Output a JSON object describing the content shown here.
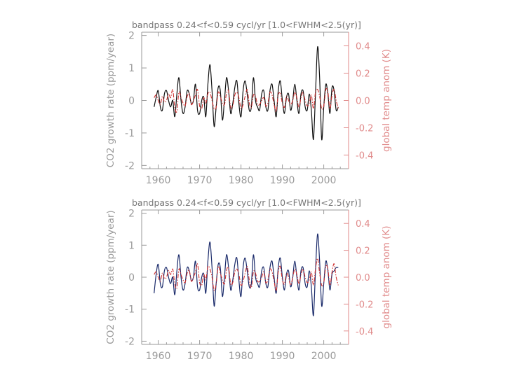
{
  "colors": {
    "co2": "#111111",
    "temp": "#d03030",
    "axis": "#9a9a9a",
    "right_axis": "#e08a8a",
    "co2_panel2": "#1a2a6a"
  },
  "chart_data": [
    {
      "type": "line",
      "title": "bandpass 0.24<f<0.59 cycl/yr  [1.0<FWHM<2.5(yr)]",
      "ylabel": "CO2 growth rate (ppm/year)",
      "y2label": "global temp anom (K)",
      "xlim": [
        1956,
        2006
      ],
      "ylim": [
        -2.1,
        2.1
      ],
      "y2lim": [
        -0.5,
        0.5
      ],
      "xticks": [
        1960,
        1970,
        1980,
        1990,
        2000
      ],
      "xtick_labels": [
        "1960",
        "1970",
        "1980",
        "1990",
        "2000"
      ],
      "yticks": [
        -2,
        -1,
        0,
        1,
        2
      ],
      "ytick_labels": [
        "-2",
        "-1",
        "0",
        "1",
        "2"
      ],
      "y2ticks": [
        -0.4,
        -0.2,
        0.0,
        0.2,
        0.4
      ],
      "y2tick_labels": [
        "-0.4",
        "-0.2",
        "0.0",
        "0.2",
        "0.4"
      ],
      "series": [
        {
          "axis": "left",
          "style": "solid",
          "color": "#111111",
          "x": [
            1959.0,
            1959.5,
            1960.0,
            1960.5,
            1961.0,
            1961.5,
            1962.0,
            1962.5,
            1963.0,
            1963.5,
            1964.0,
            1964.5,
            1965.0,
            1965.5,
            1966.0,
            1966.5,
            1967.0,
            1967.5,
            1968.0,
            1968.5,
            1969.0,
            1969.5,
            1970.0,
            1970.5,
            1971.0,
            1971.5,
            1972.0,
            1972.5,
            1973.0,
            1973.5,
            1974.0,
            1974.5,
            1975.0,
            1975.5,
            1976.0,
            1976.5,
            1977.0,
            1977.5,
            1978.0,
            1978.5,
            1979.0,
            1979.5,
            1980.0,
            1980.5,
            1981.0,
            1981.5,
            1982.0,
            1982.5,
            1983.0,
            1983.5,
            1984.0,
            1984.5,
            1985.0,
            1985.5,
            1986.0,
            1986.5,
            1987.0,
            1987.5,
            1988.0,
            1988.5,
            1989.0,
            1989.5,
            1990.0,
            1990.5,
            1991.0,
            1991.5,
            1992.0,
            1992.5,
            1993.0,
            1993.5,
            1994.0,
            1994.5,
            1995.0,
            1995.5,
            1996.0,
            1996.5,
            1997.0,
            1997.5,
            1998.0,
            1998.5,
            1999.0,
            1999.5,
            2000.0,
            2000.5,
            2001.0,
            2001.5,
            2002.0,
            2002.5,
            2003.0,
            2003.5
          ],
          "y": [
            -0.2,
            0.1,
            0.3,
            -0.2,
            -0.3,
            0.2,
            0.3,
            0.0,
            -0.2,
            0.0,
            -0.5,
            0.2,
            0.7,
            0.0,
            -0.4,
            -0.2,
            0.3,
            0.2,
            -0.1,
            0.0,
            0.5,
            -0.3,
            -0.4,
            0.0,
            0.1,
            -0.5,
            0.5,
            1.1,
            0.3,
            -0.8,
            -0.2,
            0.4,
            0.3,
            -0.6,
            0.0,
            0.7,
            0.3,
            -0.4,
            -0.1,
            0.4,
            0.6,
            -0.1,
            -0.5,
            0.3,
            0.6,
            0.2,
            -0.3,
            -0.2,
            0.7,
            0.0,
            -0.2,
            -0.3,
            0.2,
            0.3,
            -0.2,
            -0.3,
            0.3,
            0.5,
            0.0,
            -0.5,
            0.3,
            0.6,
            0.0,
            -0.4,
            0.1,
            0.2,
            -0.3,
            0.0,
            0.5,
            0.0,
            -0.4,
            0.2,
            0.3,
            -0.2,
            -0.3,
            0.2,
            -0.3,
            -1.2,
            0.2,
            1.65,
            0.7,
            -1.2,
            -0.2,
            0.5,
            0.2,
            -0.4,
            0.4,
            0.3,
            -0.3,
            -0.2
          ]
        },
        {
          "axis": "right",
          "style": "dashdot",
          "color": "#d03030",
          "x": [
            1959.0,
            1959.5,
            1960.0,
            1960.5,
            1961.0,
            1961.5,
            1962.0,
            1962.5,
            1963.0,
            1963.5,
            1964.0,
            1964.5,
            1965.0,
            1965.5,
            1966.0,
            1966.5,
            1967.0,
            1967.5,
            1968.0,
            1968.5,
            1969.0,
            1969.5,
            1970.0,
            1970.5,
            1971.0,
            1971.5,
            1972.0,
            1972.5,
            1973.0,
            1973.5,
            1974.0,
            1974.5,
            1975.0,
            1975.5,
            1976.0,
            1976.5,
            1977.0,
            1977.5,
            1978.0,
            1978.5,
            1979.0,
            1979.5,
            1980.0,
            1980.5,
            1981.0,
            1981.5,
            1982.0,
            1982.5,
            1983.0,
            1983.5,
            1984.0,
            1984.5,
            1985.0,
            1985.5,
            1986.0,
            1986.5,
            1987.0,
            1987.5,
            1988.0,
            1988.5,
            1989.0,
            1989.5,
            1990.0,
            1990.5,
            1991.0,
            1991.5,
            1992.0,
            1992.5,
            1993.0,
            1993.5,
            1994.0,
            1994.5,
            1995.0,
            1995.5,
            1996.0,
            1996.5,
            1997.0,
            1997.5,
            1998.0,
            1998.5,
            1999.0,
            1999.5,
            2000.0,
            2000.5,
            2001.0,
            2001.5,
            2002.0,
            2002.5,
            2003.0,
            2003.5
          ],
          "y": [
            0.02,
            0.04,
            0.0,
            -0.03,
            0.03,
            -0.01,
            0.0,
            0.05,
            0.02,
            0.08,
            -0.05,
            -0.08,
            0.06,
            0.02,
            -0.02,
            -0.04,
            0.03,
            0.05,
            -0.03,
            0.0,
            0.04,
            0.08,
            -0.04,
            -0.06,
            0.02,
            -0.02,
            0.05,
            0.06,
            0.0,
            -0.06,
            -0.05,
            0.06,
            0.03,
            -0.02,
            -0.03,
            0.05,
            0.07,
            -0.05,
            -0.04,
            0.04,
            0.06,
            0.02,
            -0.06,
            -0.03,
            0.03,
            0.08,
            -0.02,
            -0.05,
            0.04,
            0.03,
            -0.03,
            -0.03,
            0.0,
            0.02,
            -0.04,
            -0.02,
            0.06,
            0.04,
            -0.03,
            -0.08,
            0.04,
            0.05,
            -0.02,
            -0.05,
            0.03,
            0.0,
            -0.03,
            0.0,
            0.06,
            0.02,
            -0.05,
            0.02,
            0.06,
            0.0,
            -0.04,
            -0.02,
            0.04,
            -0.06,
            0.06,
            0.08,
            0.03,
            -0.06,
            -0.04,
            0.08,
            0.06,
            -0.06,
            0.04,
            0.08,
            0.0,
            -0.06
          ]
        }
      ]
    },
    {
      "type": "line",
      "title": "bandpass 0.24<f<0.59 cycl/yr  [1.0<FWHM<2.5(yr)]",
      "ylabel": "CO2 growth rate (ppm/year)",
      "y2label": "global temp anom (K)",
      "xlim": [
        1956,
        2006
      ],
      "ylim": [
        -2.1,
        2.1
      ],
      "y2lim": [
        -0.5,
        0.5
      ],
      "xticks": [
        1960,
        1970,
        1980,
        1990,
        2000
      ],
      "xtick_labels": [
        "1960",
        "1970",
        "1980",
        "1990",
        "2000"
      ],
      "yticks": [
        -2,
        -1,
        0,
        1,
        2
      ],
      "ytick_labels": [
        "-2",
        "-1",
        "0",
        "1",
        "2"
      ],
      "y2ticks": [
        -0.4,
        -0.2,
        0.0,
        0.2,
        0.4
      ],
      "y2tick_labels": [
        "-0.4",
        "-0.2",
        "0.0",
        "0.2",
        "0.4"
      ],
      "series": [
        {
          "axis": "left",
          "style": "solid",
          "color": "#1a2a6a",
          "x": [
            1959.0,
            1959.5,
            1960.0,
            1960.5,
            1961.0,
            1961.5,
            1962.0,
            1962.5,
            1963.0,
            1963.5,
            1964.0,
            1964.5,
            1965.0,
            1965.5,
            1966.0,
            1966.5,
            1967.0,
            1967.5,
            1968.0,
            1968.5,
            1969.0,
            1969.5,
            1970.0,
            1970.5,
            1971.0,
            1971.5,
            1972.0,
            1972.5,
            1973.0,
            1973.5,
            1974.0,
            1974.5,
            1975.0,
            1975.5,
            1976.0,
            1976.5,
            1977.0,
            1977.5,
            1978.0,
            1978.5,
            1979.0,
            1979.5,
            1980.0,
            1980.5,
            1981.0,
            1981.5,
            1982.0,
            1982.5,
            1983.0,
            1983.5,
            1984.0,
            1984.5,
            1985.0,
            1985.5,
            1986.0,
            1986.5,
            1987.0,
            1987.5,
            1988.0,
            1988.5,
            1989.0,
            1989.5,
            1990.0,
            1990.5,
            1991.0,
            1991.5,
            1992.0,
            1992.5,
            1993.0,
            1993.5,
            1994.0,
            1994.5,
            1995.0,
            1995.5,
            1996.0,
            1996.5,
            1997.0,
            1997.5,
            1998.0,
            1998.5,
            1999.0,
            1999.5,
            2000.0,
            2000.5,
            2001.0,
            2001.5,
            2002.0,
            2002.5,
            2003.0,
            2003.5
          ],
          "y": [
            -0.5,
            0.1,
            0.4,
            -0.2,
            -0.3,
            0.2,
            0.3,
            0.0,
            -0.2,
            0.0,
            -0.55,
            0.2,
            0.7,
            0.0,
            -0.4,
            -0.2,
            0.3,
            0.2,
            -0.1,
            0.0,
            0.5,
            -0.3,
            -0.4,
            0.0,
            0.1,
            -0.5,
            0.5,
            1.1,
            0.3,
            -0.9,
            -0.2,
            0.4,
            0.3,
            -0.6,
            0.0,
            0.7,
            0.3,
            -0.4,
            -0.1,
            0.4,
            0.6,
            -0.1,
            -0.6,
            0.3,
            0.6,
            0.2,
            -0.3,
            -0.2,
            0.7,
            0.0,
            -0.2,
            -0.3,
            0.2,
            0.3,
            -0.2,
            -0.3,
            0.3,
            0.5,
            0.0,
            -0.5,
            0.3,
            0.6,
            0.0,
            -0.4,
            0.1,
            0.2,
            -0.3,
            0.0,
            0.5,
            0.0,
            -0.4,
            0.2,
            0.3,
            -0.2,
            -0.3,
            0.2,
            -0.3,
            -1.2,
            0.2,
            1.35,
            0.5,
            -0.9,
            -0.2,
            0.5,
            0.2,
            -0.4,
            0.1,
            0.2,
            0.3,
            0.3
          ]
        },
        {
          "axis": "right",
          "style": "dashdot",
          "color": "#d03030",
          "x": [
            1959.0,
            1959.5,
            1960.0,
            1960.5,
            1961.0,
            1961.5,
            1962.0,
            1962.5,
            1963.0,
            1963.5,
            1964.0,
            1964.5,
            1965.0,
            1965.5,
            1966.0,
            1966.5,
            1967.0,
            1967.5,
            1968.0,
            1968.5,
            1969.0,
            1969.5,
            1970.0,
            1970.5,
            1971.0,
            1971.5,
            1972.0,
            1972.5,
            1973.0,
            1973.5,
            1974.0,
            1974.5,
            1975.0,
            1975.5,
            1976.0,
            1976.5,
            1977.0,
            1977.5,
            1978.0,
            1978.5,
            1979.0,
            1979.5,
            1980.0,
            1980.5,
            1981.0,
            1981.5,
            1982.0,
            1982.5,
            1983.0,
            1983.5,
            1984.0,
            1984.5,
            1985.0,
            1985.5,
            1986.0,
            1986.5,
            1987.0,
            1987.5,
            1988.0,
            1988.5,
            1989.0,
            1989.5,
            1990.0,
            1990.5,
            1991.0,
            1991.5,
            1992.0,
            1992.5,
            1993.0,
            1993.5,
            1994.0,
            1994.5,
            1995.0,
            1995.5,
            1996.0,
            1996.5,
            1997.0,
            1997.5,
            1998.0,
            1998.5,
            1999.0,
            1999.5,
            2000.0,
            2000.5,
            2001.0,
            2001.5,
            2002.0,
            2002.5,
            2003.0,
            2003.5
          ],
          "y": [
            0.02,
            0.04,
            0.0,
            -0.03,
            0.03,
            -0.01,
            0.0,
            0.05,
            0.02,
            0.06,
            -0.05,
            -0.08,
            0.06,
            0.02,
            -0.02,
            -0.04,
            0.03,
            0.05,
            -0.03,
            0.0,
            0.04,
            0.1,
            -0.04,
            -0.06,
            0.02,
            -0.02,
            0.08,
            0.06,
            0.0,
            -0.1,
            -0.05,
            0.08,
            0.03,
            -0.02,
            -0.05,
            0.05,
            0.07,
            -0.05,
            -0.04,
            0.04,
            0.06,
            0.02,
            -0.06,
            -0.03,
            0.03,
            0.08,
            -0.02,
            -0.08,
            0.04,
            0.03,
            -0.03,
            -0.03,
            0.0,
            0.04,
            -0.04,
            -0.02,
            0.06,
            0.04,
            -0.03,
            -0.1,
            0.04,
            0.08,
            -0.02,
            -0.05,
            0.03,
            0.0,
            -0.06,
            0.0,
            0.06,
            0.02,
            -0.05,
            0.02,
            0.06,
            0.0,
            -0.04,
            -0.02,
            0.04,
            -0.06,
            0.06,
            0.14,
            0.03,
            -0.06,
            -0.04,
            0.08,
            0.06,
            -0.06,
            0.04,
            0.1,
            0.0,
            -0.06
          ]
        }
      ]
    }
  ]
}
